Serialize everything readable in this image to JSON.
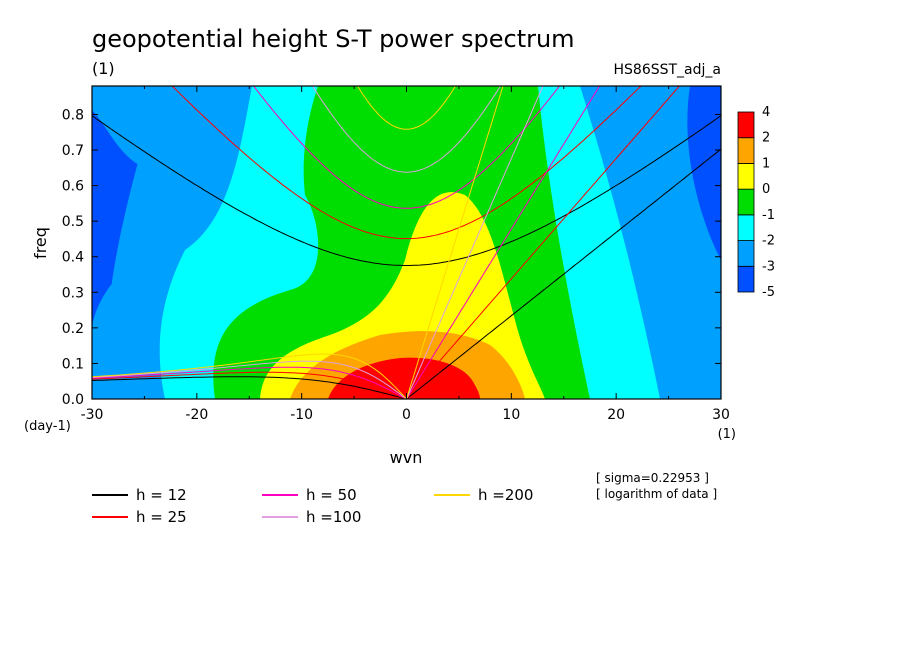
{
  "title": "geopotential height S-T power spectrum",
  "subtitle_left": "(1)",
  "subtitle_right": "HS86SST_adj_a",
  "x_unit": "(1)",
  "y_unit": "(day-1)",
  "notes": [
    "[ sigma=0.22953 ]",
    "[ logarithm of data ]"
  ],
  "chart_data": {
    "type": "heatmap",
    "xlabel": "wvn",
    "ylabel": "freq",
    "xlim": [
      -30,
      30
    ],
    "ylim": [
      0,
      0.88
    ],
    "x_ticks": [
      -30,
      -20,
      -10,
      0,
      10,
      20,
      30
    ],
    "y_ticks": [
      0.0,
      0.1,
      0.2,
      0.3,
      0.4,
      0.5,
      0.6,
      0.7,
      0.8
    ],
    "colorbar": {
      "levels": [
        -5,
        -3,
        -2,
        -1,
        0,
        1,
        2,
        4
      ],
      "colors": [
        "#0050ff",
        "#00a0ff",
        "#00ffff",
        "#00dd00",
        "#ffff00",
        "#ffa500",
        "#ff0000"
      ]
    },
    "legend": {
      "placement": "bottom",
      "entries": [
        {
          "label": "h = 12",
          "color": "#000000",
          "h": 12
        },
        {
          "label": "h = 25",
          "color": "#ff0000",
          "h": 25
        },
        {
          "label": "h = 50",
          "color": "#ff00c0",
          "h": 50
        },
        {
          "label": "h =100",
          "color": "#e0a0e0",
          "h": 100
        },
        {
          "label": "h =200",
          "color": "#ffd700",
          "h": 200
        }
      ]
    },
    "regions": [
      {
        "level_index": 0,
        "description": "<= -3 (outer edges)"
      },
      {
        "level_index": 1,
        "description": "-3 to -2"
      },
      {
        "level_index": 2,
        "description": "-2 to -1"
      },
      {
        "level_index": 3,
        "description": "-1 to 0 (central band)"
      },
      {
        "level_index": 4,
        "description": "0 to 1 (wedge up to ~0.58)"
      },
      {
        "level_index": 5,
        "description": "1 to 2 (near origin)"
      },
      {
        "level_index": 6,
        "description": "2 to 4 (peak at origin)"
      }
    ]
  }
}
